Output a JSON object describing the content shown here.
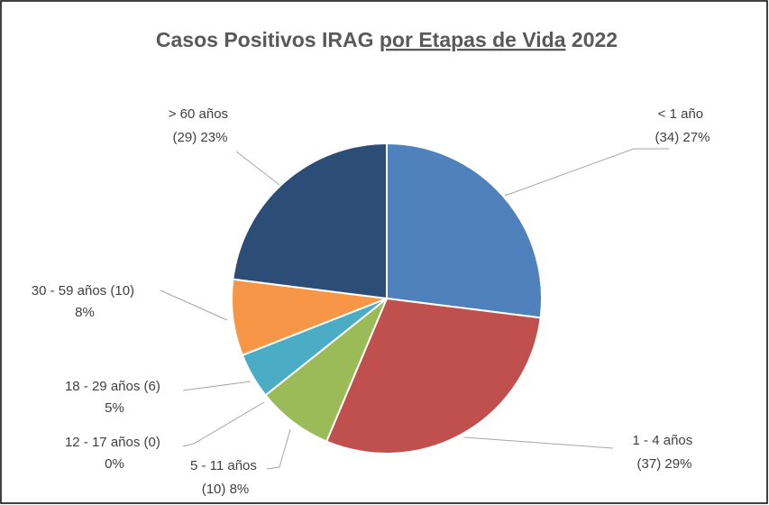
{
  "chart_data": {
    "type": "pie",
    "title": [
      "Casos Positivos IRAG",
      "por Etapas de Vida",
      "2022"
    ],
    "categories": [
      "< 1 año",
      "1 - 4 años",
      "5 - 11 años",
      "12 - 17 años",
      "18 - 29 años",
      "30 - 59 años",
      "> 60 años"
    ],
    "values": [
      34,
      37,
      10,
      0,
      6,
      10,
      29
    ],
    "value_labels": [
      "(34)",
      "(37)",
      "(10)",
      "(0)",
      "(6)",
      "(10)",
      "(29)"
    ],
    "percent_labels": [
      "27%",
      "29%",
      "8%",
      "0%",
      "5%",
      "8%",
      "23%"
    ],
    "colors": [
      "#4f81bd",
      "#c0504d",
      "#9bbb59",
      "#8064a2",
      "#4bacc6",
      "#f79646",
      "#2c4d75"
    ]
  }
}
